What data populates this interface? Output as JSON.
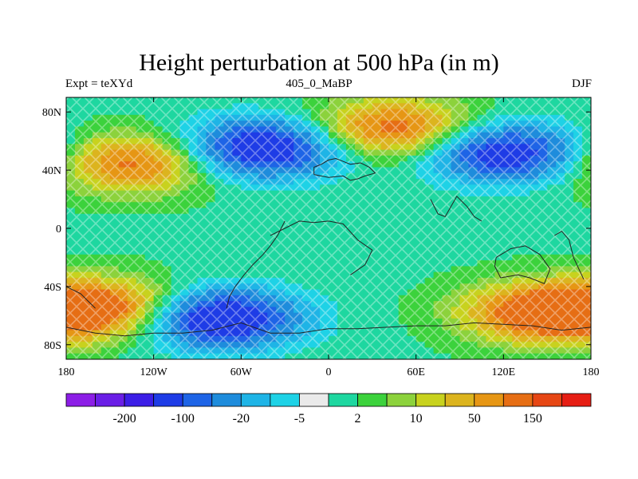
{
  "title": "Height perturbation at 500 hPa (in m)",
  "subtitle_left": "Expt = teXYd",
  "subtitle_center": "405_0_MaBP",
  "subtitle_right": "DJF",
  "x_axis": {
    "range": [
      -180,
      180
    ],
    "ticks": [
      {
        "value": -180,
        "label": "180"
      },
      {
        "value": -120,
        "label": "120W"
      },
      {
        "value": -60,
        "label": "60W"
      },
      {
        "value": 0,
        "label": "0"
      },
      {
        "value": 60,
        "label": "60E"
      },
      {
        "value": 120,
        "label": "120E"
      },
      {
        "value": 180,
        "label": "180"
      }
    ]
  },
  "y_axis": {
    "range": [
      -90,
      90
    ],
    "ticks": [
      {
        "value": 80,
        "label": "80N"
      },
      {
        "value": 40,
        "label": "40N"
      },
      {
        "value": 0,
        "label": "0"
      },
      {
        "value": -40,
        "label": "40S"
      },
      {
        "value": -80,
        "label": "80S"
      }
    ]
  },
  "colorbar": {
    "colors": [
      "#8c1ee6",
      "#6a1ee6",
      "#3c1ee6",
      "#1e3ce6",
      "#1e64e6",
      "#1e8cdc",
      "#1eb4e6",
      "#1ed2e6",
      "#eaeaea",
      "#1ed7a0",
      "#3cd23c",
      "#8cd23c",
      "#c8d21e",
      "#dcb41e",
      "#e69614",
      "#e66e14",
      "#e64614",
      "#e61e14"
    ],
    "labels": [
      {
        "after_index": 1,
        "text": "-200"
      },
      {
        "after_index": 3,
        "text": "-100"
      },
      {
        "after_index": 5,
        "text": "-20"
      },
      {
        "after_index": 7,
        "text": "-5"
      },
      {
        "after_index": 9,
        "text": "2"
      },
      {
        "after_index": 11,
        "text": "10"
      },
      {
        "after_index": 13,
        "text": "50"
      },
      {
        "after_index": 15,
        "text": "150"
      }
    ]
  },
  "features": [
    {
      "name": "north-pacific-high",
      "lon": -135,
      "lat": 45,
      "sign": 1,
      "strength": 1.0
    },
    {
      "name": "north-atlantic-low",
      "lon": -45,
      "lat": 55,
      "sign": -1,
      "strength": 1.4
    },
    {
      "name": "eurasia-high",
      "lon": 45,
      "lat": 68,
      "sign": 1,
      "strength": 1.1
    },
    {
      "name": "east-asia-low",
      "lon": 120,
      "lat": 52,
      "sign": -1,
      "strength": 1.3
    },
    {
      "name": "south-pacific-low",
      "lon": -75,
      "lat": -62,
      "sign": -1,
      "strength": 1.5
    },
    {
      "name": "southern-ocean-high",
      "lon": 150,
      "lat": -58,
      "sign": 1,
      "strength": 1.3
    },
    {
      "name": "southwest-atlantic-high",
      "lon": -150,
      "lat": -55,
      "sign": 1,
      "strength": 1.0
    }
  ]
}
